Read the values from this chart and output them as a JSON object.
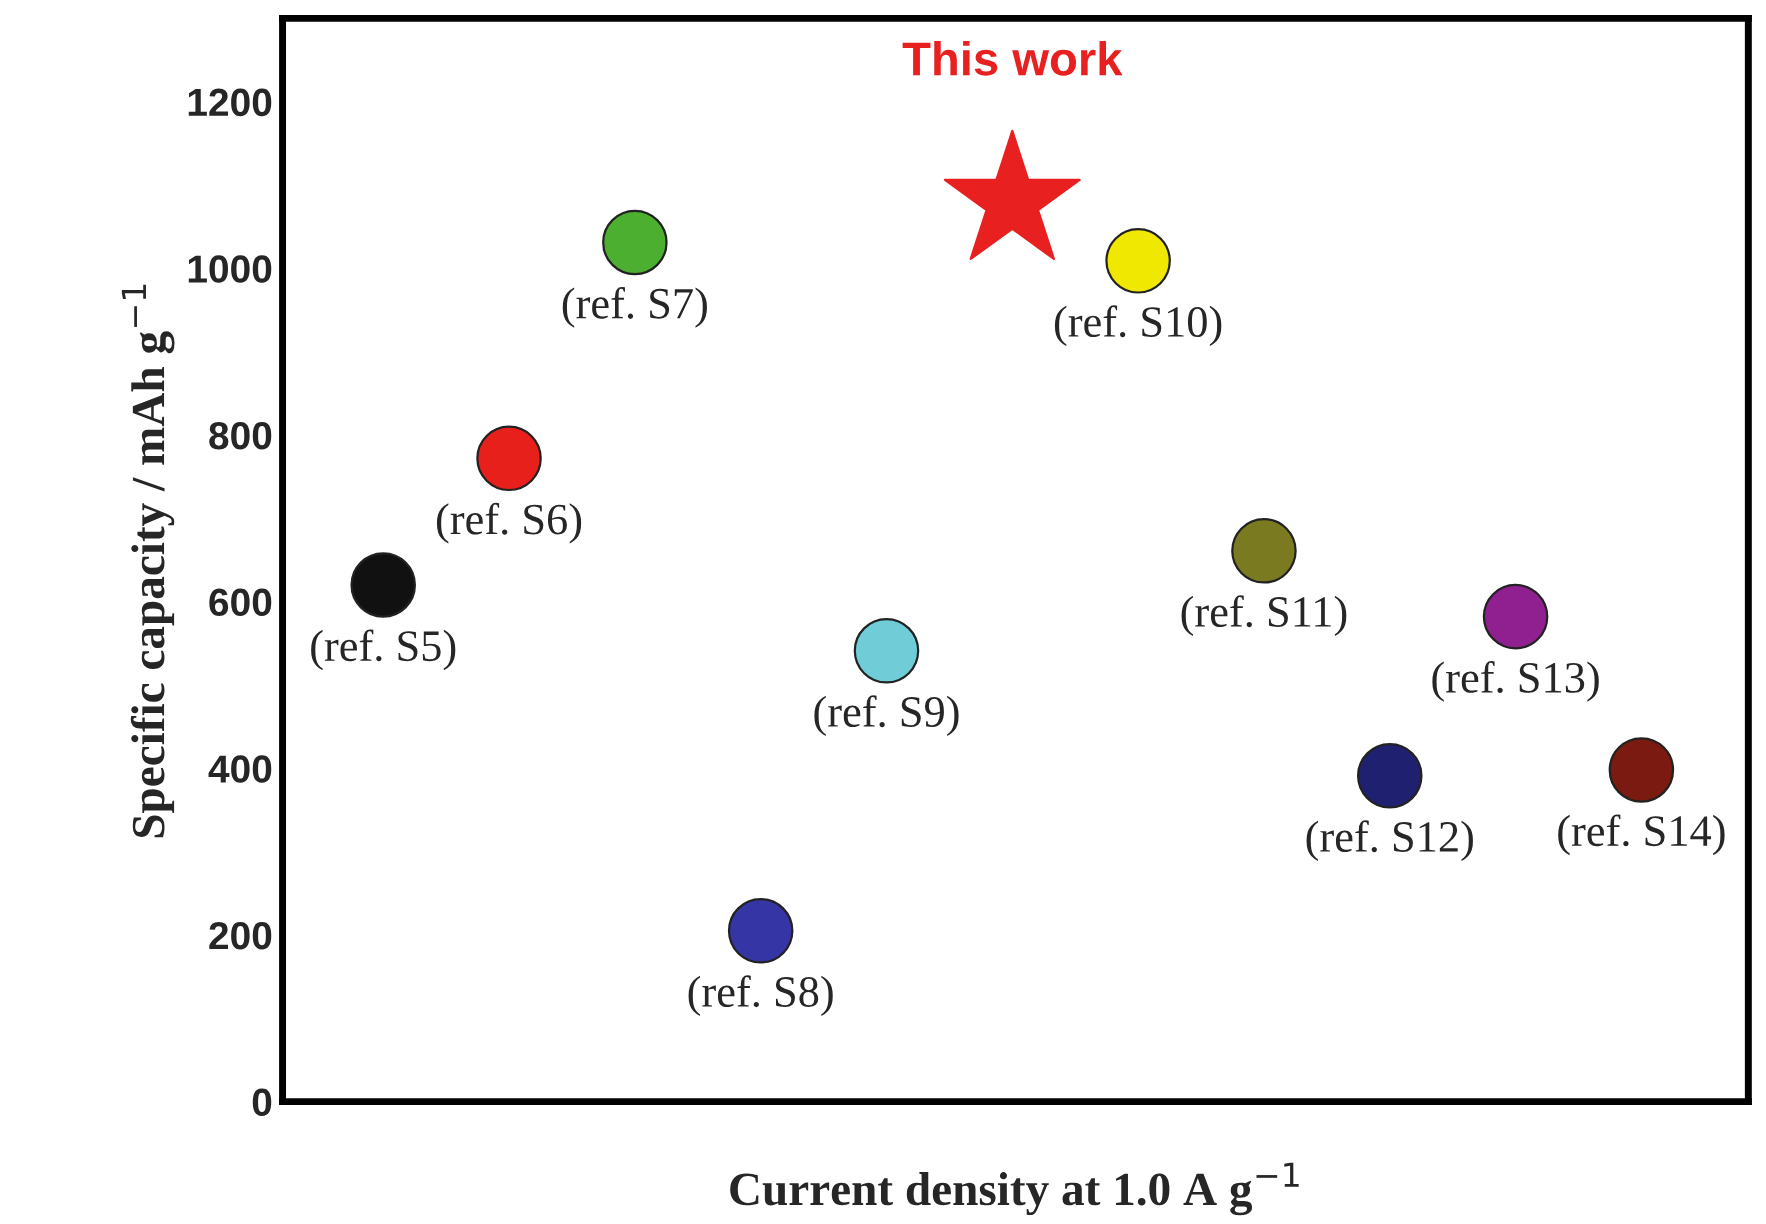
{
  "chart_data": {
    "type": "scatter",
    "xlabel": "Current density at 1.0 A g$^{−1}$",
    "ylabel": "Specific capacity / mAh g$^{−1}$",
    "categories": [
      null,
      null,
      null,
      null,
      null,
      null,
      null,
      null,
      null,
      null,
      null
    ],
    "ylim": [
      0,
      1300
    ],
    "yticks": [
      0,
      200,
      400,
      600,
      800,
      1000,
      1200
    ],
    "tick_labels": "y",
    "grid": false,
    "legend": false,
    "series": [
      {
        "name": "(ref. S5)",
        "color": "#111111",
        "marker": "circle",
        "values": [
          620,
          null,
          null,
          null,
          null,
          null,
          null,
          null,
          null,
          null,
          null
        ]
      },
      {
        "name": "(ref. S6)",
        "color": "#e8201c",
        "marker": "circle",
        "values": [
          null,
          772,
          null,
          null,
          null,
          null,
          null,
          null,
          null,
          null,
          null
        ]
      },
      {
        "name": "(ref. S7)",
        "color": "#4caf30",
        "marker": "circle",
        "values": [
          null,
          null,
          1031,
          null,
          null,
          null,
          null,
          null,
          null,
          null,
          null
        ]
      },
      {
        "name": "(ref. S8)",
        "color": "#3535a5",
        "marker": "circle",
        "values": [
          null,
          null,
          null,
          205,
          null,
          null,
          null,
          null,
          null,
          null,
          null
        ]
      },
      {
        "name": "(ref. S9)",
        "color": "#70cdd8",
        "marker": "circle",
        "values": [
          null,
          null,
          null,
          null,
          541,
          null,
          null,
          null,
          null,
          null,
          null
        ]
      },
      {
        "name": "This work",
        "color": "#e82020",
        "marker": "star",
        "values": [
          null,
          null,
          null,
          null,
          null,
          1080,
          null,
          null,
          null,
          null,
          null
        ]
      },
      {
        "name": "(ref. S10)",
        "color": "#f0e800",
        "marker": "circle",
        "values": [
          null,
          null,
          null,
          null,
          null,
          null,
          1009,
          null,
          null,
          null,
          null
        ]
      },
      {
        "name": "(ref. S11)",
        "color": "#7a7a20",
        "marker": "circle",
        "values": [
          null,
          null,
          null,
          null,
          null,
          null,
          null,
          661,
          null,
          null,
          null
        ]
      },
      {
        "name": "(ref. S12)",
        "color": "#202070",
        "marker": "circle",
        "values": [
          null,
          null,
          null,
          null,
          null,
          null,
          null,
          null,
          391,
          null,
          null
        ]
      },
      {
        "name": "(ref. S13)",
        "color": "#902090",
        "marker": "circle",
        "values": [
          null,
          null,
          null,
          null,
          null,
          null,
          null,
          null,
          null,
          582,
          null
        ]
      },
      {
        "name": "(ref. S14)",
        "color": "#7a1a10",
        "marker": "circle",
        "values": [
          null,
          null,
          null,
          null,
          null,
          null,
          null,
          null,
          null,
          null,
          398
        ]
      }
    ]
  }
}
